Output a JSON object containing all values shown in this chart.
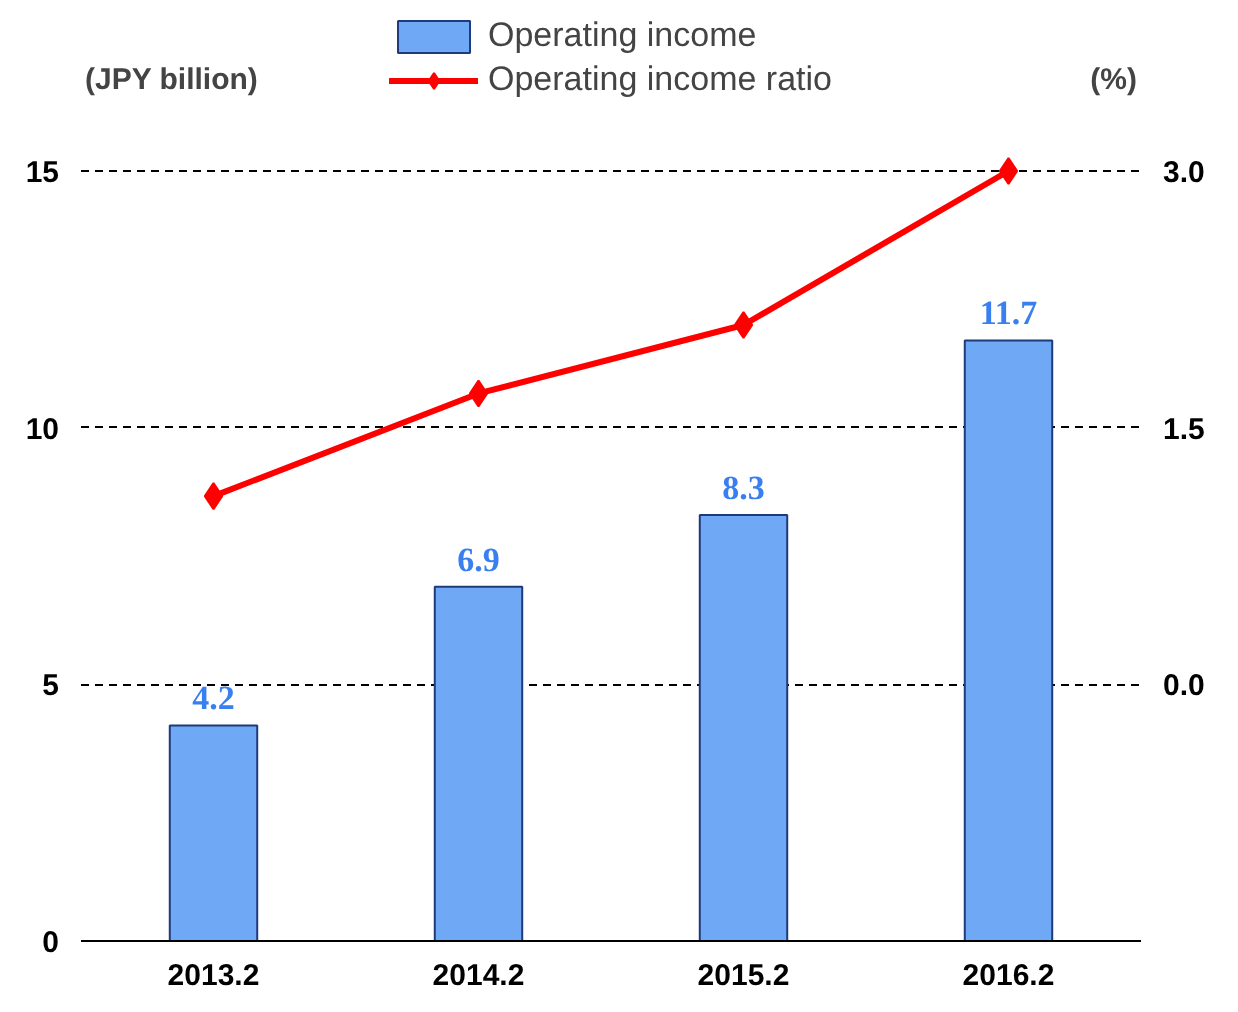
{
  "chart_data": {
    "type": "bar",
    "categories": [
      "2013.2",
      "2014.2",
      "2015.2",
      "2016.2"
    ],
    "ylabel": "(JPY billion)",
    "y2label": "(%)",
    "series": [
      {
        "name": "Operating income",
        "color": "#6fa8f5",
        "values": [
          4.2,
          6.9,
          8.3,
          11.7
        ],
        "value_labels": [
          "4.2",
          "6.9",
          "8.3",
          "11.7"
        ]
      },
      {
        "name": "Operating income ratio",
        "type": "line",
        "axis": "y2",
        "color": "#ff0000",
        "marker": "diamond",
        "values": [
          1.1,
          1.7,
          2.1,
          3.0
        ]
      }
    ],
    "ylim": [
      0,
      18
    ],
    "yticks": [
      0,
      5,
      10,
      15
    ],
    "y2lim": [
      -1.5,
      3.9
    ],
    "y2ticks": [
      {
        "value": 0,
        "label": "0.0"
      },
      {
        "value": 1.5,
        "label": "1.5"
      },
      {
        "value": 3.0,
        "label": "3.0"
      }
    ],
    "grid": "y",
    "legend": "top"
  }
}
